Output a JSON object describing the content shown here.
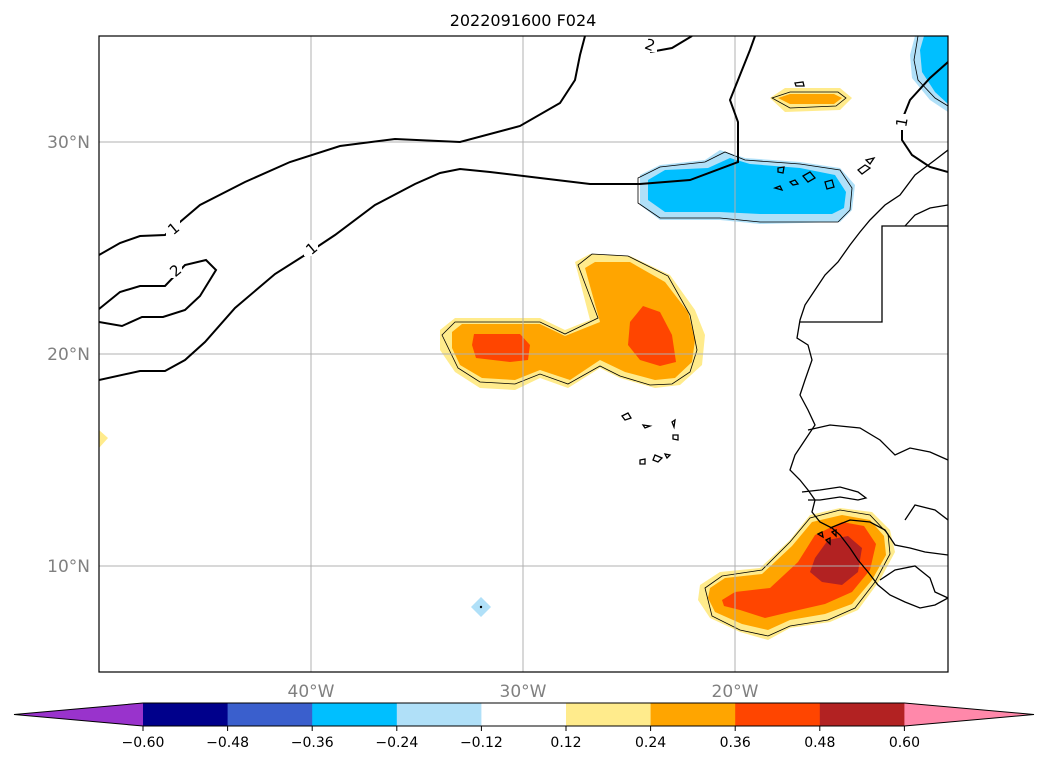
{
  "title": "2022091600 F024",
  "lat_labels": [
    "30°N",
    "20°N",
    "10°N"
  ],
  "lon_labels": [
    "40°W",
    "30°W",
    "20°W"
  ],
  "contour_labels": [
    "2",
    "1",
    "1",
    "2",
    "1"
  ],
  "colorbar": {
    "ticks": [
      "−0.60",
      "−0.48",
      "−0.36",
      "−0.24",
      "−0.12",
      "0.12",
      "0.24",
      "0.36",
      "0.48",
      "0.60"
    ],
    "colors": [
      "#9933cc",
      "#00008b",
      "#3a5fcd",
      "#00bfff",
      "#b0e0f8",
      "#ffffff",
      "#ffeb8c",
      "#ffa500",
      "#ff4500",
      "#b22222",
      "#ff88aa"
    ]
  },
  "map": {
    "lon_range": [
      -50,
      -10
    ],
    "lat_range": [
      5,
      35
    ],
    "gridlines": true,
    "fill_colors": {
      "light_yellow": "#ffeb8c",
      "orange": "#ffa500",
      "red_orange": "#ff4500",
      "dark_red": "#b22222",
      "light_blue": "#b0e0f8",
      "blue": "#00bfff"
    }
  }
}
